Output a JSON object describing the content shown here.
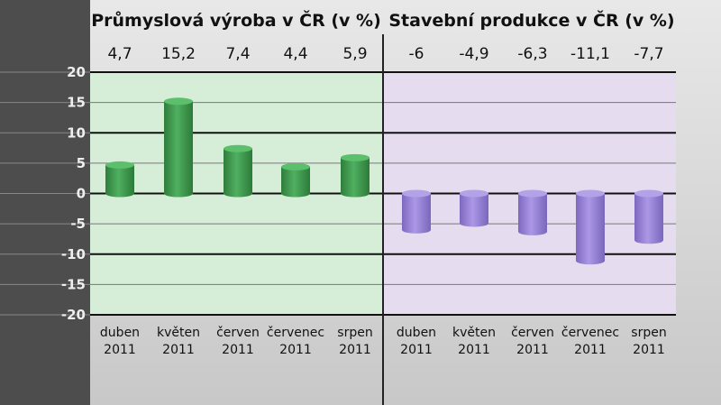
{
  "chart_data": [
    {
      "type": "bar",
      "title": "Průmyslová výroba v ČR (v %)",
      "categories": [
        [
          "duben",
          "2011"
        ],
        [
          "květen",
          "2011"
        ],
        [
          "červen",
          "2011"
        ],
        [
          "červenec",
          "2011"
        ],
        [
          "srpen",
          "2011"
        ]
      ],
      "values": [
        4.7,
        15.2,
        7.4,
        4.4,
        5.9
      ],
      "value_labels": [
        "4,7",
        "15,2",
        "7,4",
        "4,4",
        "5,9"
      ],
      "ylim": [
        -20,
        20
      ],
      "yticks": [
        20,
        15,
        10,
        5,
        0,
        -5,
        -10,
        -15,
        -20
      ],
      "grid": true,
      "color": "#3f9a4f",
      "background": "#d6eed8"
    },
    {
      "type": "bar",
      "title": "Stavební produkce v ČR (v %)",
      "categories": [
        [
          "duben",
          "2011"
        ],
        [
          "květen",
          "2011"
        ],
        [
          "červen",
          "2011"
        ],
        [
          "červenec",
          "2011"
        ],
        [
          "srpen",
          "2011"
        ]
      ],
      "values": [
        -6,
        -4.9,
        -6.3,
        -11.1,
        -7.7
      ],
      "value_labels": [
        "-6",
        "-4,9",
        "-6,3",
        "-11,1",
        "-7,7"
      ],
      "ylim": [
        -20,
        20
      ],
      "grid": true,
      "color": "#9b86d6",
      "background": "#e6dcf0"
    }
  ]
}
